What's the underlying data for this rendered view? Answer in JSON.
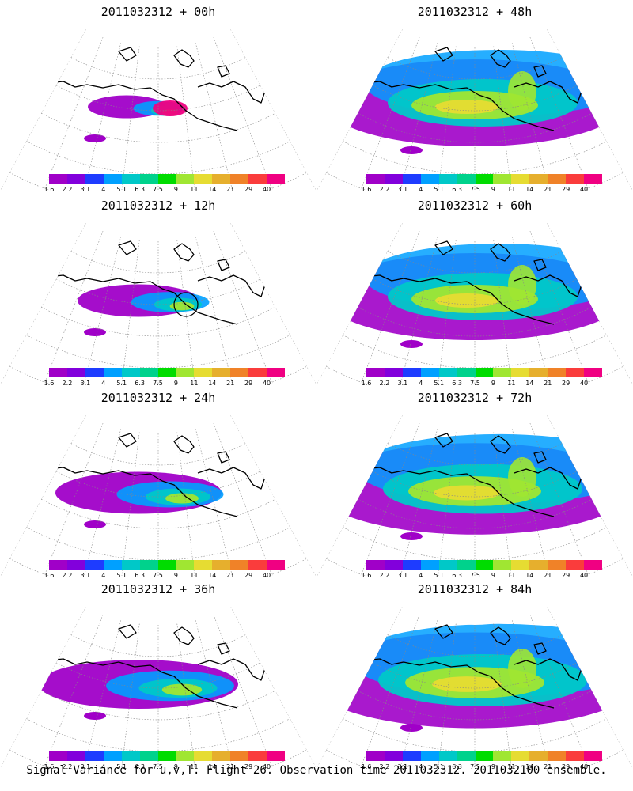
{
  "panels": [
    {
      "title": "2011032312 + 00h",
      "lead": "00h"
    },
    {
      "title": "2011032312 + 48h",
      "lead": "48h"
    },
    {
      "title": "2011032312 + 12h",
      "lead": "12h"
    },
    {
      "title": "2011032312 + 60h",
      "lead": "60h"
    },
    {
      "title": "2011032312 + 24h",
      "lead": "24h"
    },
    {
      "title": "2011032312 + 72h",
      "lead": "72h"
    },
    {
      "title": "2011032312 + 36h",
      "lead": "36h"
    },
    {
      "title": "2011032312 + 84h",
      "lead": "84h"
    }
  ],
  "colorbar": {
    "labels": [
      "1.6",
      "2.2",
      "3.1",
      "4",
      "5.1",
      "6.3",
      "7.5",
      "9",
      "11",
      "14",
      "21",
      "29",
      "40"
    ],
    "colors": [
      "#a000c8",
      "#8200dc",
      "#1e3cff",
      "#00a0ff",
      "#00c8c8",
      "#00d28c",
      "#00dc00",
      "#a0e632",
      "#e6dc32",
      "#e6af2d",
      "#f08228",
      "#fa3c3c",
      "#f00082"
    ]
  },
  "footer": "Signal Variance for u,v,T. Flight 26. Observation time 2011032312. 2011032100 ensemble."
}
